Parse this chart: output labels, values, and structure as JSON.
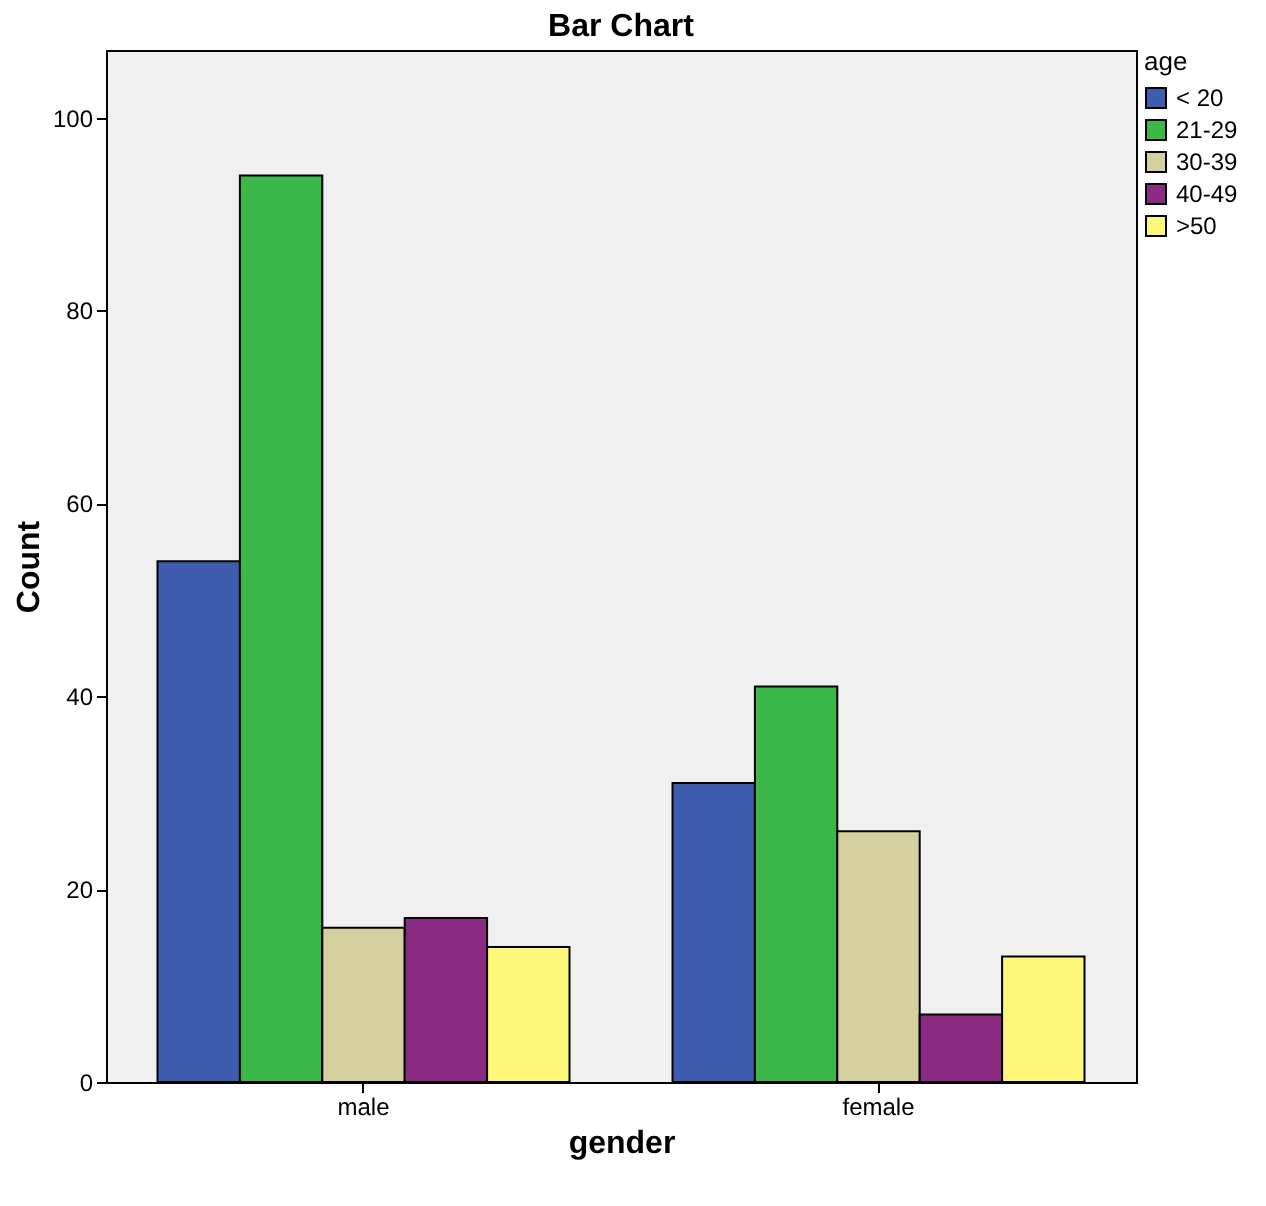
{
  "chart_data": {
    "type": "bar",
    "title": "Bar Chart",
    "xlabel": "gender",
    "ylabel": "Count",
    "legend_title": "age",
    "legend": "top right",
    "categories": [
      "male",
      "female"
    ],
    "series": [
      {
        "name": "< 20",
        "color": "#3e5daf",
        "values": [
          54,
          31
        ]
      },
      {
        "name": "21-29",
        "color": "#3cb84a",
        "values": [
          94,
          41
        ]
      },
      {
        "name": "30-39",
        "color": "#d6cfa0",
        "values": [
          16,
          26
        ]
      },
      {
        "name": "40-49",
        "color": "#8a2a80",
        "values": [
          17,
          7
        ]
      },
      {
        "name": ">50",
        "color": "#fdf87a",
        "values": [
          14,
          13
        ]
      }
    ],
    "ylim": [
      0,
      107
    ],
    "yticks": [
      0,
      20,
      40,
      60,
      80,
      100
    ],
    "grid": false
  }
}
